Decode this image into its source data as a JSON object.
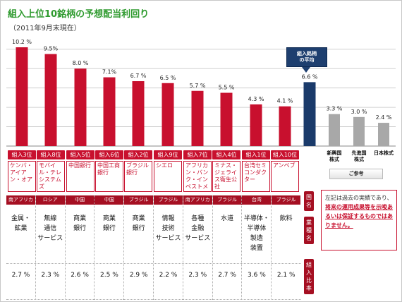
{
  "header": {
    "title": "組入上位10銘柄の予想配当利回り",
    "subtitle": "（2011年9月末現在）"
  },
  "callout": {
    "line1": "組入銘柄",
    "line2": "の平均"
  },
  "bench_note": "ご参考",
  "colors": {
    "bar_red": "#c8102e",
    "bar_navy": "#1a3a6a",
    "bar_gray": "#a8a8a8",
    "tag_red": "#c8102e",
    "table_tag": "#a50f22"
  },
  "chart_data": {
    "type": "bar",
    "unit": "%",
    "ylim": [
      0,
      11
    ],
    "grid": true,
    "value_labels": [
      "10.2 %",
      "9.5%",
      "8.0 %",
      "7.1%",
      "6.7 %",
      "6.5 %",
      "5.7 %",
      "5.5 %",
      "4.3 %",
      "4.1 %",
      "6.6 %",
      "3.3 %",
      "3.0 %",
      "2.4 %"
    ],
    "values": [
      10.2,
      9.5,
      8.0,
      7.1,
      6.7,
      6.5,
      5.7,
      5.5,
      4.3,
      4.1,
      6.6,
      3.3,
      3.0,
      2.4
    ],
    "bar_kind": [
      "stock",
      "stock",
      "stock",
      "stock",
      "stock",
      "stock",
      "stock",
      "stock",
      "stock",
      "stock",
      "average",
      "bench",
      "bench",
      "bench"
    ],
    "stocks": [
      {
        "rank": "組入3位",
        "name": "ケンバ・アイアン・オア",
        "country": "南アフリカ",
        "industry": [
          "金属・",
          "鉱業"
        ],
        "weight": "2.7 %"
      },
      {
        "rank": "組入8位",
        "name": "モバイル・テレシステムズ",
        "country": "ロシア",
        "industry": [
          "無線",
          "通信",
          "サービス"
        ],
        "weight": "2.3 %"
      },
      {
        "rank": "組入5位",
        "name": "中国銀行",
        "country": "中国",
        "industry": [
          "商業",
          "銀行"
        ],
        "weight": "2.6 %"
      },
      {
        "rank": "組入6位",
        "name": "中国工商銀行",
        "country": "中国",
        "industry": [
          "商業",
          "銀行"
        ],
        "weight": "2.5 %"
      },
      {
        "rank": "組入2位",
        "name": "ブラジル銀行",
        "country": "ブラジル",
        "industry": [
          "商業",
          "銀行"
        ],
        "weight": "2.9 %"
      },
      {
        "rank": "組入9位",
        "name": "シエロ",
        "country": "ブラジル",
        "industry": [
          "情報",
          "技術",
          "サービス"
        ],
        "weight": "2.2 %"
      },
      {
        "rank": "組入7位",
        "name": "アフリカン・バンク・インベストメンツ",
        "country": "南アフリカ",
        "industry": [
          "各種",
          "金融",
          "サービス"
        ],
        "weight": "2.3 %"
      },
      {
        "rank": "組入4位",
        "name": "ミナス・ジェライス衛生公社",
        "country": "ブラジル",
        "industry": [
          "水道"
        ],
        "weight": "2.7 %"
      },
      {
        "rank": "組入1位",
        "name": "台湾セミコンダクター",
        "country": "台湾",
        "industry": [
          "半導体・",
          "半導体",
          "製造",
          "装置"
        ],
        "weight": "3.6 %"
      },
      {
        "rank": "組入10位",
        "name": "アンベブ",
        "country": "ブラジル",
        "industry": [
          "飲料"
        ],
        "weight": "2.1 %"
      }
    ],
    "benchmarks": [
      {
        "label1": "新興国",
        "label2": "株式"
      },
      {
        "label1": "先進国",
        "label2": "株式"
      },
      {
        "label1": "日本株式",
        "label2": ""
      }
    ]
  },
  "side_tags": {
    "country": "国名",
    "industry": "業種名",
    "weight": "組入比率"
  },
  "disclaimer": {
    "pre": "左記は過去の実績であり、",
    "emph": "将来の運用成果等を示唆あるいは保証するものではありません。"
  }
}
